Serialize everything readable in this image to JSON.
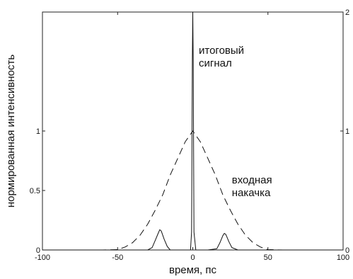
{
  "chart_data": {
    "type": "line",
    "title": "",
    "xlabel": "время, пс",
    "ylabel": "нормированная интенсивность",
    "xlim": [
      -100,
      100
    ],
    "ylim_left": [
      0,
      2
    ],
    "ylim_right": [
      0,
      2
    ],
    "x_ticks": [
      {
        "value": -100,
        "label": "-100"
      },
      {
        "value": -50,
        "label": "-50"
      },
      {
        "value": 0,
        "label": "0"
      },
      {
        "value": 50,
        "label": "50"
      },
      {
        "value": 100,
        "label": "100"
      }
    ],
    "y_ticks_left": [
      {
        "value": 0,
        "label": "0"
      },
      {
        "value": 0.5,
        "label": "0.5"
      },
      {
        "value": 1,
        "label": "1"
      }
    ],
    "y_ticks_right": [
      {
        "value": 0,
        "label": "0"
      },
      {
        "value": 1,
        "label": "1"
      },
      {
        "value": 2,
        "label": "2"
      }
    ],
    "series": [
      {
        "id": "pump",
        "style": "dashed",
        "axis": "left",
        "x": [
          -100,
          -60,
          -50,
          -45,
          -40,
          -35,
          -30,
          -25,
          -20,
          -15,
          -10,
          -5,
          0,
          5,
          10,
          15,
          20,
          25,
          30,
          35,
          40,
          45,
          50,
          60,
          100
        ],
        "y": [
          0,
          0,
          0.003,
          0.025,
          0.062,
          0.125,
          0.217,
          0.334,
          0.463,
          0.63,
          0.77,
          0.91,
          1.0,
          0.91,
          0.77,
          0.63,
          0.463,
          0.334,
          0.217,
          0.125,
          0.062,
          0.025,
          0.003,
          0,
          0
        ]
      },
      {
        "id": "output",
        "style": "solid",
        "axis": "left",
        "x": [
          -100,
          -30,
          -27,
          -25,
          -23,
          -22,
          -21,
          -19,
          -17,
          -15,
          -8,
          -1.5,
          -0.8,
          -0.3,
          0,
          0.3,
          0.8,
          2,
          10,
          16,
          18,
          20,
          21,
          22,
          24,
          26,
          30,
          100
        ],
        "y": [
          0,
          0,
          0.02,
          0.08,
          0.14,
          0.17,
          0.16,
          0.09,
          0.03,
          0,
          0,
          0,
          0.15,
          1.6,
          2.0,
          1.6,
          0.15,
          0,
          0,
          0.01,
          0.06,
          0.12,
          0.14,
          0.13,
          0.07,
          0.02,
          0,
          0
        ]
      }
    ],
    "annotations": [
      {
        "series": "output",
        "lines": [
          "итоговый",
          "сигнал"
        ],
        "x": 4,
        "y": 1.65
      },
      {
        "series": "pump",
        "lines": [
          "входная",
          "накачка"
        ],
        "x": 26,
        "y": 0.56
      }
    ]
  }
}
